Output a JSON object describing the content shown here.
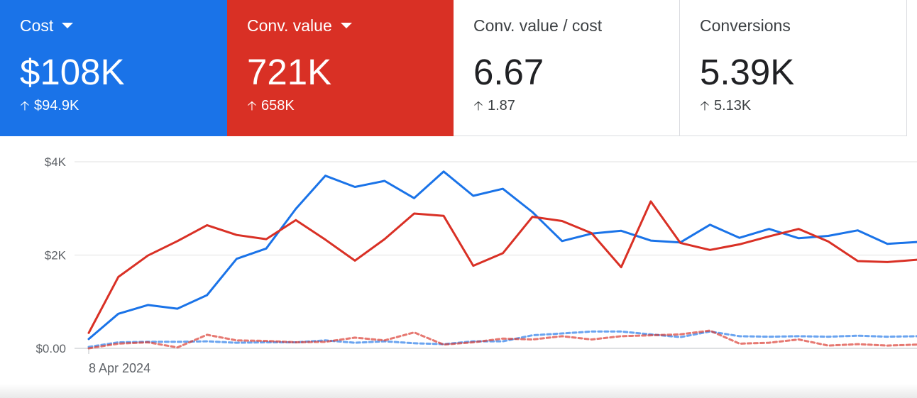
{
  "cards": [
    {
      "label": "Cost",
      "value": "$108K",
      "delta": "$94.9K",
      "has_dropdown": true,
      "color": "#1a73e8"
    },
    {
      "label": "Conv. value",
      "value": "721K",
      "delta": "658K",
      "has_dropdown": true,
      "color": "#d93025"
    },
    {
      "label": "Conv. value / cost",
      "value": "6.67",
      "delta": "1.87",
      "has_dropdown": false,
      "color": "#ffffff"
    },
    {
      "label": "Conversions",
      "value": "5.39K",
      "delta": "5.13K",
      "has_dropdown": false,
      "color": "#ffffff"
    }
  ],
  "icons": {
    "dropdown": "caret-down-icon",
    "delta": "arrow-up-icon"
  },
  "chart_data": {
    "type": "line",
    "x_start_label": "8 Apr 2024",
    "y_ticks": [
      "$0.00",
      "$2K",
      "$4K"
    ],
    "ylim": [
      0,
      4000
    ],
    "x": [
      0,
      1,
      2,
      3,
      4,
      5,
      6,
      7,
      8,
      9,
      10,
      11,
      12,
      13,
      14,
      15,
      16,
      17,
      18,
      19,
      20,
      21,
      22,
      23,
      24,
      25,
      26,
      27,
      28
    ],
    "grid": true,
    "series": [
      {
        "color": "#1a73e8",
        "dashed": false,
        "values": [
          200,
          740,
          930,
          850,
          1140,
          1920,
          2140,
          2990,
          3700,
          3460,
          3590,
          3220,
          3790,
          3270,
          3420,
          2920,
          2300,
          2460,
          2520,
          2310,
          2270,
          2650,
          2370,
          2560,
          2360,
          2410,
          2530,
          2240,
          2280
        ]
      },
      {
        "color": "#d93025",
        "dashed": false,
        "values": [
          330,
          1530,
          1990,
          2300,
          2640,
          2430,
          2340,
          2750,
          2330,
          1880,
          2340,
          2890,
          2840,
          1770,
          2040,
          2820,
          2730,
          2470,
          1740,
          3150,
          2260,
          2110,
          2230,
          2400,
          2560,
          2290,
          1870,
          1850,
          1900
        ]
      },
      {
        "color": "#1a73e8",
        "dashed": true,
        "values": [
          30,
          130,
          140,
          140,
          150,
          120,
          130,
          130,
          170,
          120,
          150,
          110,
          90,
          150,
          150,
          280,
          320,
          360,
          360,
          300,
          240,
          360,
          260,
          250,
          260,
          250,
          270,
          250,
          260
        ]
      },
      {
        "color": "#d93025",
        "dashed": true,
        "values": [
          0,
          100,
          130,
          20,
          290,
          170,
          160,
          130,
          140,
          230,
          170,
          340,
          80,
          130,
          210,
          190,
          260,
          190,
          260,
          280,
          300,
          380,
          100,
          120,
          190,
          60,
          90,
          60,
          80
        ]
      }
    ]
  }
}
